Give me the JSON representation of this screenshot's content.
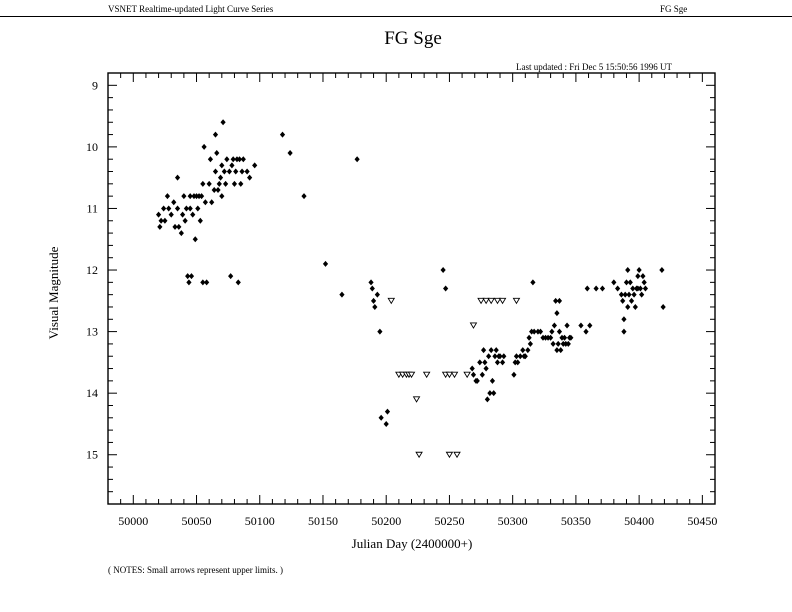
{
  "header": {
    "left_label": "VSNET Realtime-updated Light Curve Series",
    "right_label": "FG Sge"
  },
  "last_updated": "Last updated :  Fri Dec 5 15:50:56 1996 UT",
  "notes": "( NOTES: Small arrows represent upper limits. )",
  "chart_data": {
    "type": "scatter",
    "title": "FG Sge",
    "xlabel": "Julian Day (2400000+)",
    "ylabel": "Visual Magnitude",
    "xlim": [
      49980,
      50460
    ],
    "ylim": [
      8.8,
      15.8
    ],
    "y_inverted": true,
    "x_ticks": [
      50000,
      50050,
      50100,
      50150,
      50200,
      50250,
      50300,
      50350,
      50400,
      50450
    ],
    "y_ticks": [
      9,
      10,
      11,
      12,
      13,
      14,
      15
    ],
    "grid": false,
    "series": [
      {
        "marker": "diamond",
        "points": [
          [
            50020,
            11.1
          ],
          [
            50021,
            11.3
          ],
          [
            50022,
            11.2
          ],
          [
            50024,
            11.0
          ],
          [
            50025,
            11.2
          ],
          [
            50027,
            10.8
          ],
          [
            50028,
            11.0
          ],
          [
            50030,
            11.1
          ],
          [
            50032,
            10.9
          ],
          [
            50033,
            11.3
          ],
          [
            50035,
            10.5
          ],
          [
            50035,
            11.0
          ],
          [
            50036,
            11.3
          ],
          [
            50038,
            11.4
          ],
          [
            50039,
            11.1
          ],
          [
            50040,
            10.8
          ],
          [
            50041,
            11.2
          ],
          [
            50042,
            11.0
          ],
          [
            50043,
            12.1
          ],
          [
            50044,
            12.2
          ],
          [
            50045,
            10.8
          ],
          [
            50045,
            11.0
          ],
          [
            50046,
            12.1
          ],
          [
            50047,
            11.1
          ],
          [
            50048,
            10.8
          ],
          [
            50049,
            11.5
          ],
          [
            50050,
            10.8
          ],
          [
            50051,
            11.0
          ],
          [
            50052,
            10.8
          ],
          [
            50053,
            11.2
          ],
          [
            50054,
            10.8
          ],
          [
            50055,
            10.6
          ],
          [
            50055,
            12.2
          ],
          [
            50056,
            10.0
          ],
          [
            50057,
            10.9
          ],
          [
            50058,
            12.2
          ],
          [
            50060,
            10.6
          ],
          [
            50061,
            10.2
          ],
          [
            50062,
            10.9
          ],
          [
            50064,
            10.7
          ],
          [
            50065,
            9.8
          ],
          [
            50065,
            10.4
          ],
          [
            50066,
            10.1
          ],
          [
            50067,
            10.7
          ],
          [
            50068,
            10.6
          ],
          [
            50069,
            10.5
          ],
          [
            50070,
            10.8
          ],
          [
            50070,
            10.3
          ],
          [
            50071,
            9.6
          ],
          [
            50072,
            10.4
          ],
          [
            50073,
            10.6
          ],
          [
            50074,
            10.2
          ],
          [
            50076,
            10.4
          ],
          [
            50077,
            12.1
          ],
          [
            50078,
            10.3
          ],
          [
            50079,
            10.2
          ],
          [
            50080,
            10.6
          ],
          [
            50081,
            10.4
          ],
          [
            50082,
            10.2
          ],
          [
            50083,
            12.2
          ],
          [
            50084,
            10.2
          ],
          [
            50085,
            10.6
          ],
          [
            50086,
            10.4
          ],
          [
            50087,
            10.2
          ],
          [
            50090,
            10.4
          ],
          [
            50092,
            10.5
          ],
          [
            50096,
            10.3
          ],
          [
            50118,
            9.8
          ],
          [
            50124,
            10.1
          ],
          [
            50135,
            10.8
          ],
          [
            50152,
            11.9
          ],
          [
            50165,
            12.4
          ],
          [
            50177,
            10.2
          ],
          [
            50188,
            12.2
          ],
          [
            50189,
            12.3
          ],
          [
            50190,
            12.5
          ],
          [
            50191,
            12.6
          ],
          [
            50193,
            12.4
          ],
          [
            50195,
            13.0
          ],
          [
            50196,
            14.4
          ],
          [
            50200,
            14.5
          ],
          [
            50201,
            14.3
          ],
          [
            50245,
            12.0
          ],
          [
            50247,
            12.3
          ],
          [
            50268,
            13.6
          ],
          [
            50269,
            13.7
          ],
          [
            50271,
            13.8
          ],
          [
            50272,
            13.8
          ],
          [
            50274,
            13.5
          ],
          [
            50276,
            13.7
          ],
          [
            50277,
            13.3
          ],
          [
            50278,
            13.5
          ],
          [
            50279,
            13.6
          ],
          [
            50280,
            14.1
          ],
          [
            50281,
            13.4
          ],
          [
            50282,
            14.0
          ],
          [
            50283,
            13.3
          ],
          [
            50284,
            13.8
          ],
          [
            50285,
            14.0
          ],
          [
            50286,
            13.4
          ],
          [
            50287,
            13.3
          ],
          [
            50288,
            13.5
          ],
          [
            50289,
            13.4
          ],
          [
            50290,
            13.4
          ],
          [
            50292,
            13.5
          ],
          [
            50293,
            13.4
          ],
          [
            50301,
            13.7
          ],
          [
            50302,
            13.5
          ],
          [
            50303,
            13.4
          ],
          [
            50304,
            13.5
          ],
          [
            50306,
            13.4
          ],
          [
            50308,
            13.3
          ],
          [
            50309,
            13.4
          ],
          [
            50310,
            13.4
          ],
          [
            50312,
            13.3
          ],
          [
            50313,
            13.1
          ],
          [
            50314,
            13.2
          ],
          [
            50315,
            13.0
          ],
          [
            50316,
            12.2
          ],
          [
            50317,
            13.0
          ],
          [
            50320,
            13.0
          ],
          [
            50322,
            13.0
          ],
          [
            50324,
            13.1
          ],
          [
            50326,
            13.1
          ],
          [
            50328,
            13.1
          ],
          [
            50330,
            13.1
          ],
          [
            50331,
            13.0
          ],
          [
            50332,
            13.2
          ],
          [
            50333,
            12.9
          ],
          [
            50334,
            12.5
          ],
          [
            50335,
            13.3
          ],
          [
            50335,
            12.7
          ],
          [
            50336,
            13.2
          ],
          [
            50337,
            13.0
          ],
          [
            50337,
            12.5
          ],
          [
            50338,
            13.3
          ],
          [
            50339,
            13.1
          ],
          [
            50340,
            13.2
          ],
          [
            50341,
            13.1
          ],
          [
            50342,
            13.2
          ],
          [
            50343,
            12.9
          ],
          [
            50344,
            13.2
          ],
          [
            50345,
            13.1
          ],
          [
            50346,
            13.1
          ],
          [
            50354,
            12.9
          ],
          [
            50358,
            13.0
          ],
          [
            50359,
            12.3
          ],
          [
            50361,
            12.9
          ],
          [
            50366,
            12.3
          ],
          [
            50371,
            12.3
          ],
          [
            50380,
            12.2
          ],
          [
            50383,
            12.3
          ],
          [
            50386,
            12.4
          ],
          [
            50387,
            12.5
          ],
          [
            50388,
            12.8
          ],
          [
            50388,
            13.0
          ],
          [
            50389,
            12.4
          ],
          [
            50390,
            12.2
          ],
          [
            50391,
            12.6
          ],
          [
            50391,
            12.0
          ],
          [
            50392,
            12.4
          ],
          [
            50393,
            12.2
          ],
          [
            50394,
            12.5
          ],
          [
            50395,
            12.3
          ],
          [
            50396,
            12.4
          ],
          [
            50397,
            12.6
          ],
          [
            50398,
            12.3
          ],
          [
            50399,
            12.1
          ],
          [
            50399,
            12.3
          ],
          [
            50400,
            12.0
          ],
          [
            50401,
            12.3
          ],
          [
            50402,
            12.4
          ],
          [
            50403,
            12.1
          ],
          [
            50404,
            12.2
          ],
          [
            50405,
            12.3
          ],
          [
            50418,
            12.0
          ],
          [
            50419,
            12.6
          ]
        ]
      },
      {
        "marker": "upper-limit-arrow",
        "points": [
          [
            50204,
            12.5
          ],
          [
            50210,
            13.7
          ],
          [
            50213,
            13.7
          ],
          [
            50216,
            13.7
          ],
          [
            50218,
            13.7
          ],
          [
            50220,
            13.7
          ],
          [
            50224,
            14.1
          ],
          [
            50226,
            15.0
          ],
          [
            50232,
            13.7
          ],
          [
            50247,
            13.7
          ],
          [
            50250,
            13.7
          ],
          [
            50250,
            15.0
          ],
          [
            50254,
            13.7
          ],
          [
            50256,
            15.0
          ],
          [
            50264,
            13.7
          ],
          [
            50269,
            12.9
          ],
          [
            50275,
            12.5
          ],
          [
            50279,
            12.5
          ],
          [
            50283,
            12.5
          ],
          [
            50288,
            12.5
          ],
          [
            50292,
            12.5
          ],
          [
            50303,
            12.5
          ]
        ]
      }
    ]
  }
}
